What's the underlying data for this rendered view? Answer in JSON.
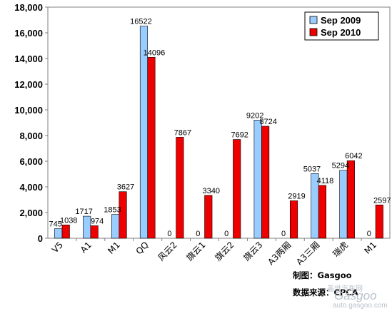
{
  "chart_data": {
    "type": "bar",
    "categories": [
      "V5",
      "A1",
      "M1",
      "QQ",
      "风云2",
      "旗云1",
      "旗云2",
      "旗云3",
      "A3两厢",
      "A3三厢",
      "瑞虎",
      "M1"
    ],
    "series": [
      {
        "name": "Sep 2009",
        "color": "#99ccff",
        "values": [
          745,
          1717,
          1853,
          16522,
          0,
          0,
          0,
          9202,
          0,
          5037,
          5294,
          0
        ]
      },
      {
        "name": "Sep 2010",
        "color": "#ee0000",
        "values": [
          1038,
          974,
          3627,
          14096,
          7867,
          3340,
          7692,
          8724,
          2919,
          4118,
          6042,
          2597
        ]
      }
    ],
    "data_labels": [
      [
        "745",
        "1717",
        "1853",
        "16522",
        "0",
        "0",
        "0",
        "9202",
        "0",
        "5037",
        "5294",
        "0"
      ],
      [
        "1038",
        "974",
        "3627",
        "14096",
        "7867",
        "3340",
        "7692",
        "8724",
        "2919",
        "4118",
        "6042",
        "2597"
      ]
    ],
    "yticks": [
      0,
      2000,
      4000,
      6000,
      8000,
      10000,
      12000,
      14000,
      16000,
      18000
    ],
    "ytick_labels": [
      "0",
      "2,000",
      "4,000",
      "6,000",
      "8,000",
      "10,000",
      "12,000",
      "14,000",
      "16,000",
      "18,000"
    ],
    "ylim": [
      0,
      18000
    ],
    "title": "",
    "xlabel": "",
    "ylabel": "",
    "legend": "top-right",
    "grid": false
  },
  "notes": {
    "maker": "制图：Gasgoo",
    "source": "数据来源：CPCA"
  },
  "watermark": {
    "brand": "Gasgoo",
    "sub": "盖世汽车网",
    "url": "auto.gasgoo.com"
  }
}
